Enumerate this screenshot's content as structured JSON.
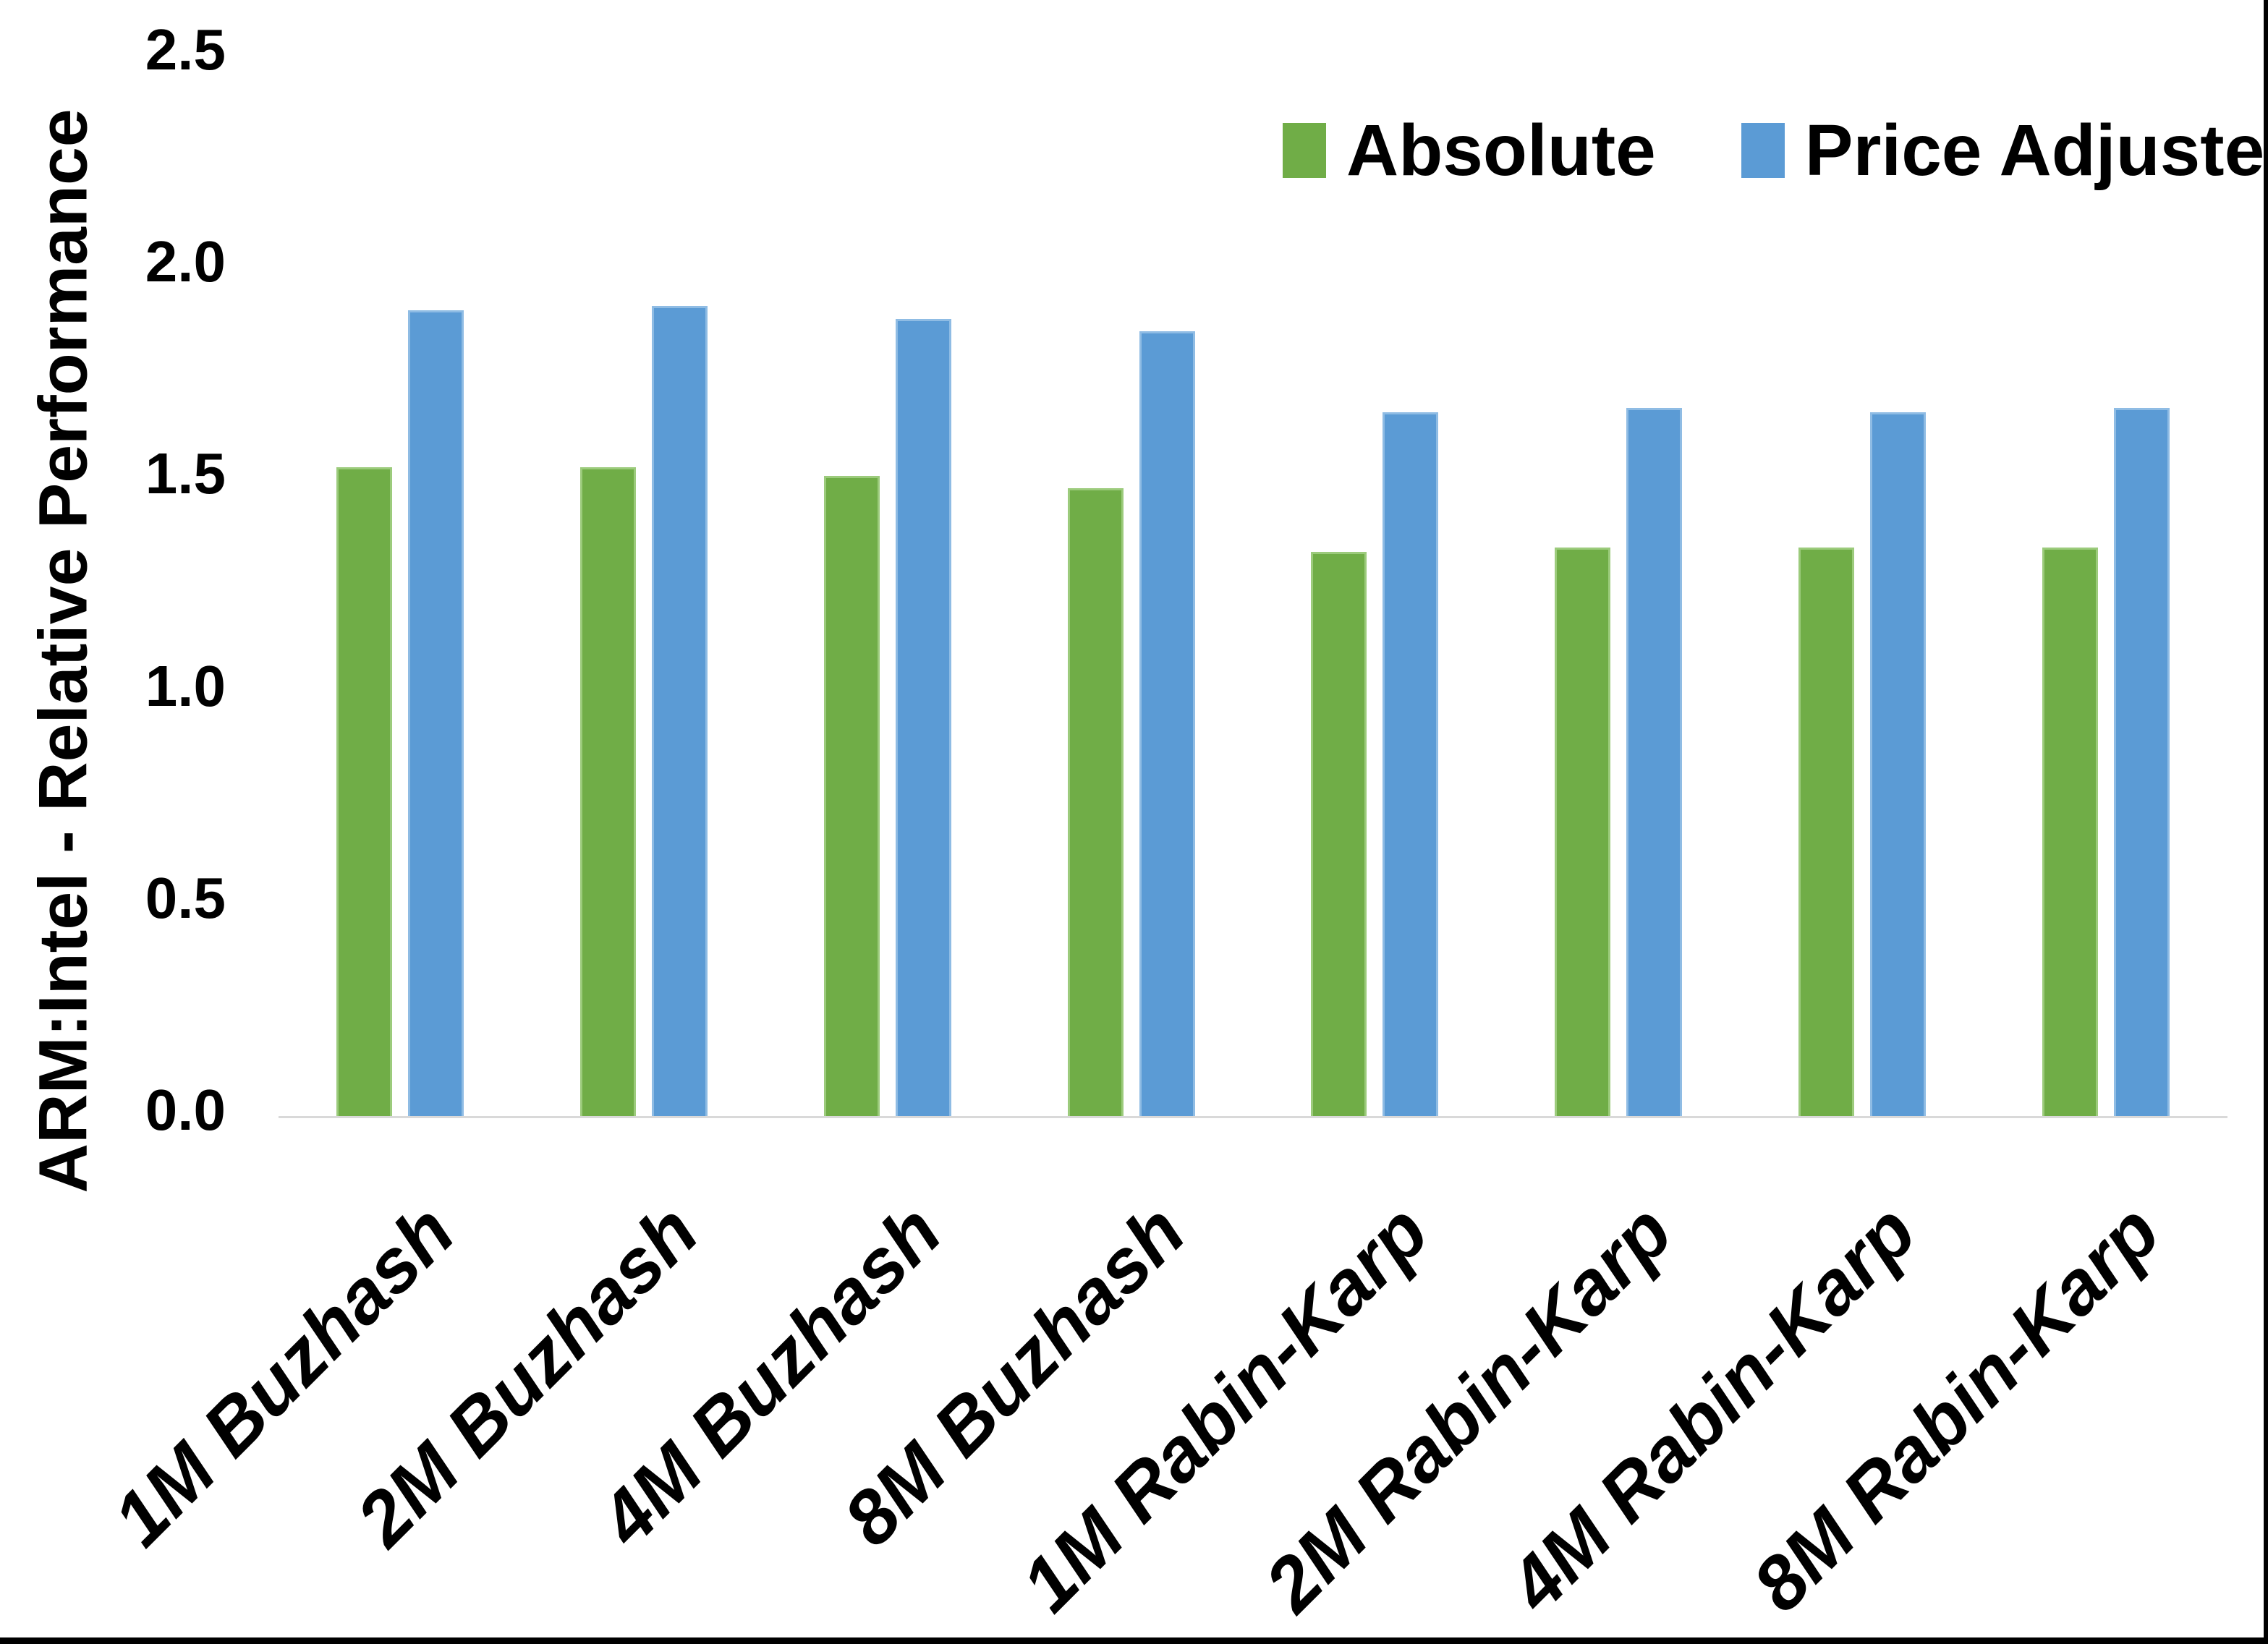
{
  "chart_data": {
    "type": "bar",
    "title": "",
    "xlabel": "",
    "ylabel": "ARM:Intel - Relative Performance",
    "ylim": [
      0,
      2.5
    ],
    "ytick_labels": [
      "0.0",
      "0.5",
      "1.0",
      "1.5",
      "2.0",
      "2.5"
    ],
    "ytick_values": [
      0,
      0.5,
      1.0,
      1.5,
      2.0,
      2.5
    ],
    "grid": false,
    "legend_position": "top-right",
    "categories": [
      "1M Buzhash",
      "2M Buzhash",
      "4M Buzhash",
      "8M Buzhash",
      "1M Rabin-Karp",
      "2M Rabin-Karp",
      "4M Rabin-Karp",
      "8M Rabin-Karp"
    ],
    "series": [
      {
        "name": "Absolute",
        "color": "#70AD47",
        "values": [
          1.53,
          1.53,
          1.51,
          1.48,
          1.33,
          1.34,
          1.34,
          1.34
        ]
      },
      {
        "name": "Price Adjusted",
        "color": "#5B9BD5",
        "values": [
          1.9,
          1.91,
          1.88,
          1.85,
          1.66,
          1.67,
          1.66,
          1.67
        ]
      }
    ]
  },
  "colors": {
    "axis_line": "#D9D9D9",
    "background": "#FFFFFF",
    "frame_border": "#000000",
    "text": "#000000"
  }
}
